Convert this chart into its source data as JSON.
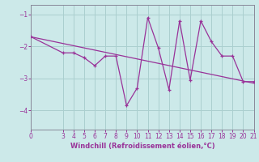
{
  "xlabel": "Windchill (Refroidissement éolien,°C)",
  "bg_color": "#cce9e9",
  "grid_color": "#aacfcf",
  "line_color": "#993399",
  "spine_color": "#888899",
  "xlim": [
    0,
    21
  ],
  "ylim": [
    -4.6,
    -0.7
  ],
  "yticks": [
    -4,
    -3,
    -2,
    -1
  ],
  "xticks": [
    0,
    3,
    4,
    5,
    6,
    7,
    8,
    9,
    10,
    11,
    12,
    13,
    14,
    15,
    16,
    17,
    18,
    19,
    20,
    21
  ],
  "data_x": [
    0,
    3,
    4,
    5,
    6,
    7,
    8,
    9,
    10,
    11,
    12,
    13,
    14,
    15,
    16,
    17,
    18,
    19,
    20,
    21
  ],
  "data_y": [
    -1.7,
    -2.2,
    -2.2,
    -2.35,
    -2.6,
    -2.3,
    -2.3,
    -3.85,
    -3.3,
    -1.1,
    -2.05,
    -3.35,
    -1.2,
    -3.05,
    -1.2,
    -1.85,
    -2.3,
    -2.3,
    -3.1,
    -3.1
  ],
  "trend_x": [
    0,
    21
  ],
  "trend_y": [
    -1.7,
    -3.15
  ],
  "tick_fontsize": 5.5,
  "xlabel_fontsize": 6.0
}
